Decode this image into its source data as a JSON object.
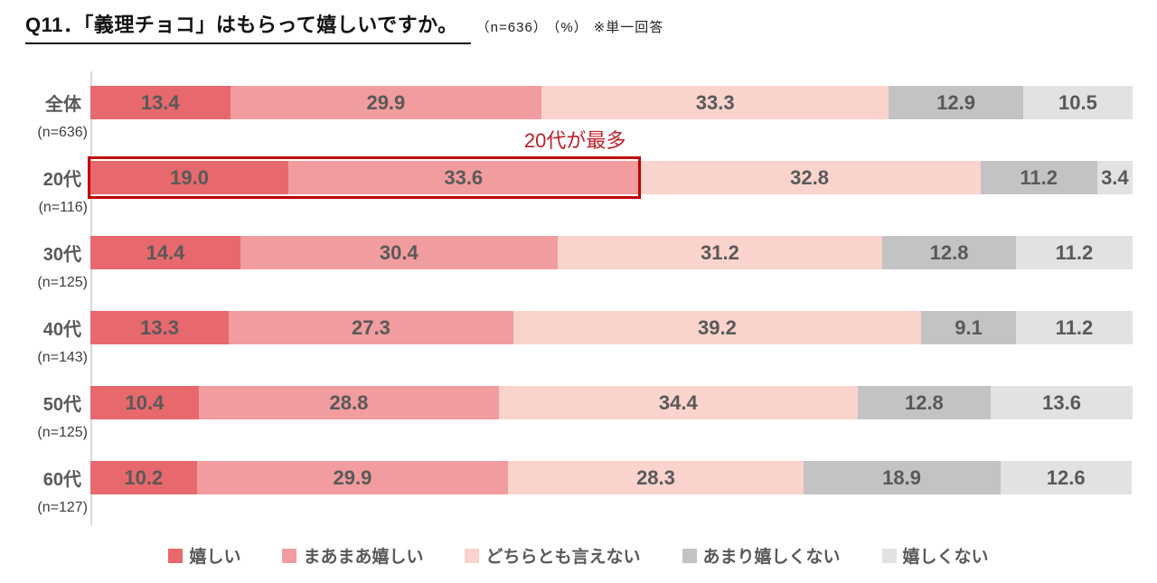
{
  "title": {
    "main": "Q11．「義理チョコ」はもらって嬉しいですか。",
    "n": "（n=636）",
    "pct": "（%）",
    "note": "※単一回答"
  },
  "annotation": "20代が最多",
  "colors": {
    "series_1": "#e7696d",
    "series_2": "#f19c9e",
    "series_3": "#fad3cd",
    "series_4": "#c3c3c3",
    "series_5": "#e2e2e2",
    "highlight_box": "#c00000",
    "annotation_text": "#c0202a",
    "value_label": "#595959",
    "axis_line": "#d9d9d9"
  },
  "chart_data": {
    "type": "bar",
    "orientation": "horizontal-stacked",
    "title": "Q11．「義理チョコ」はもらって嬉しいですか。（n=636）（%）※単一回答",
    "xlim": [
      0,
      100
    ],
    "grid": false,
    "legend_position": "bottom",
    "categories": [
      "全体",
      "20代",
      "30代",
      "40代",
      "50代",
      "60代"
    ],
    "category_n": [
      "(n=636)",
      "(n=116)",
      "(n=125)",
      "(n=143)",
      "(n=125)",
      "(n=127)"
    ],
    "series": [
      {
        "name": "嬉しい",
        "color": "#e7696d",
        "values": [
          13.4,
          19.0,
          14.4,
          13.3,
          10.4,
          10.2
        ]
      },
      {
        "name": "まあまあ嬉しい",
        "color": "#f19c9e",
        "values": [
          29.9,
          33.6,
          30.4,
          27.3,
          28.8,
          29.9
        ]
      },
      {
        "name": "どちらとも言えない",
        "color": "#fad3cd",
        "values": [
          33.3,
          32.8,
          31.2,
          39.2,
          34.4,
          28.3
        ]
      },
      {
        "name": "あまり嬉しくない",
        "color": "#c3c3c3",
        "values": [
          12.9,
          11.2,
          12.8,
          9.1,
          12.8,
          18.9
        ]
      },
      {
        "name": "嬉しくない",
        "color": "#e2e2e2",
        "values": [
          10.5,
          3.4,
          11.2,
          11.2,
          13.6,
          12.6
        ]
      }
    ],
    "highlight": {
      "row_index": 1,
      "span_percent": 52.6,
      "annotation_center_percent": 46.5,
      "label": "20代が最多",
      "note": "red box around 嬉しい+まあまあ嬉しい segments of 20代 row"
    }
  }
}
